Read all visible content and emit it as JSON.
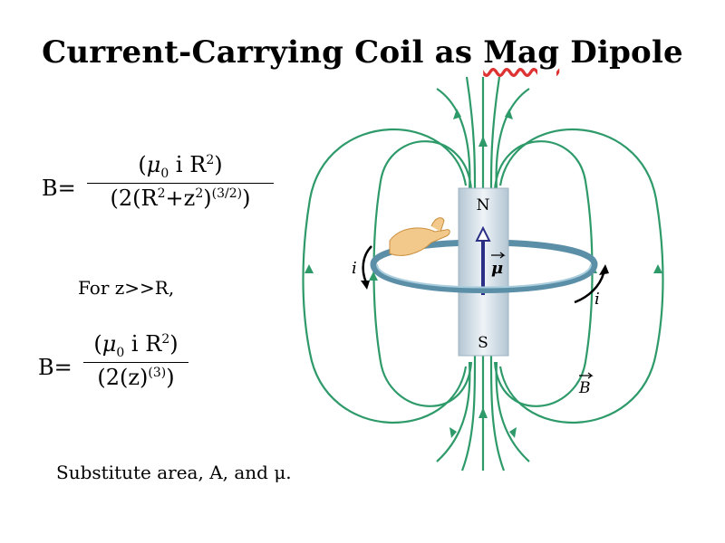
{
  "slide": {
    "title_main": "Current-Carrying Coil as ",
    "title_squiggle": "Mag",
    "title_end": " Dipole"
  },
  "equation1": {
    "lhs": "B=",
    "num_open": "(",
    "num_mu": "μ",
    "num_mu_sub": "0",
    "num_mid": " i R",
    "num_sup": "2",
    "num_close": ")",
    "den_a": "(2(R",
    "den_sup1": "2",
    "den_b": "+z",
    "den_sup2": "2",
    "den_c": ")",
    "den_sup3": "(3/2)",
    "den_d": ")"
  },
  "condition": "For z>>R,",
  "equation2": {
    "lhs": "B=",
    "num_open": "(",
    "num_mu": "μ",
    "num_mu_sub": "0",
    "num_mid": " i R",
    "num_sup": "2",
    "num_close": ")",
    "den_a": "(2(z)",
    "den_sup": "(3)",
    "den_b": ")"
  },
  "footer_note": "Substitute area, A, and μ.",
  "figure": {
    "magnet_north": "N",
    "magnet_south": "S",
    "current_left": "i",
    "current_right": "i",
    "moment_label": "μ",
    "field_label": "B",
    "field_line_color": "#2e9a6a",
    "moment_arrow_color": "#2b2f86",
    "magnet_color": "#c9d8e4",
    "coil_color": "#5b8fa8"
  }
}
